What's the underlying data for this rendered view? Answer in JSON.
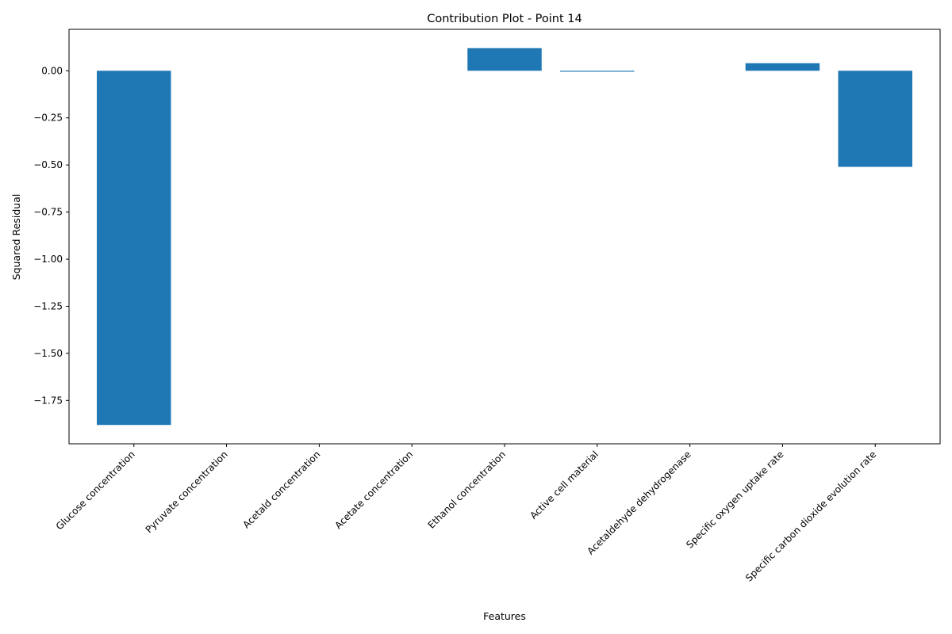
{
  "chart_data": {
    "type": "bar",
    "title": "Contribution Plot - Point 14",
    "xlabel": "Features",
    "ylabel": "Squared Residual",
    "categories": [
      "Glucose concentration",
      "Pyruvate concentration",
      "Acetald concentration",
      "Acetate concentration",
      "Ethanol concentration",
      "Active cell material",
      "Acetaldehyde dehydrogenase",
      "Specific oxygen uptake rate",
      "Specific carbon dioxide evolution rate"
    ],
    "values": [
      -1.88,
      0.0,
      0.0,
      0.0,
      0.12,
      -0.005,
      0.0,
      0.04,
      -0.51
    ],
    "ylim": [
      -1.98,
      0.22
    ],
    "yticks": [
      0.0,
      -0.25,
      -0.5,
      -0.75,
      -1.0,
      -1.25,
      -1.5,
      -1.75
    ],
    "ytick_labels": [
      "0.00",
      "−0.25",
      "−0.50",
      "−0.75",
      "−1.00",
      "−1.25",
      "−1.50",
      "−1.75"
    ],
    "bar_color": "#1f77b4",
    "grid": false,
    "legend": "none"
  }
}
